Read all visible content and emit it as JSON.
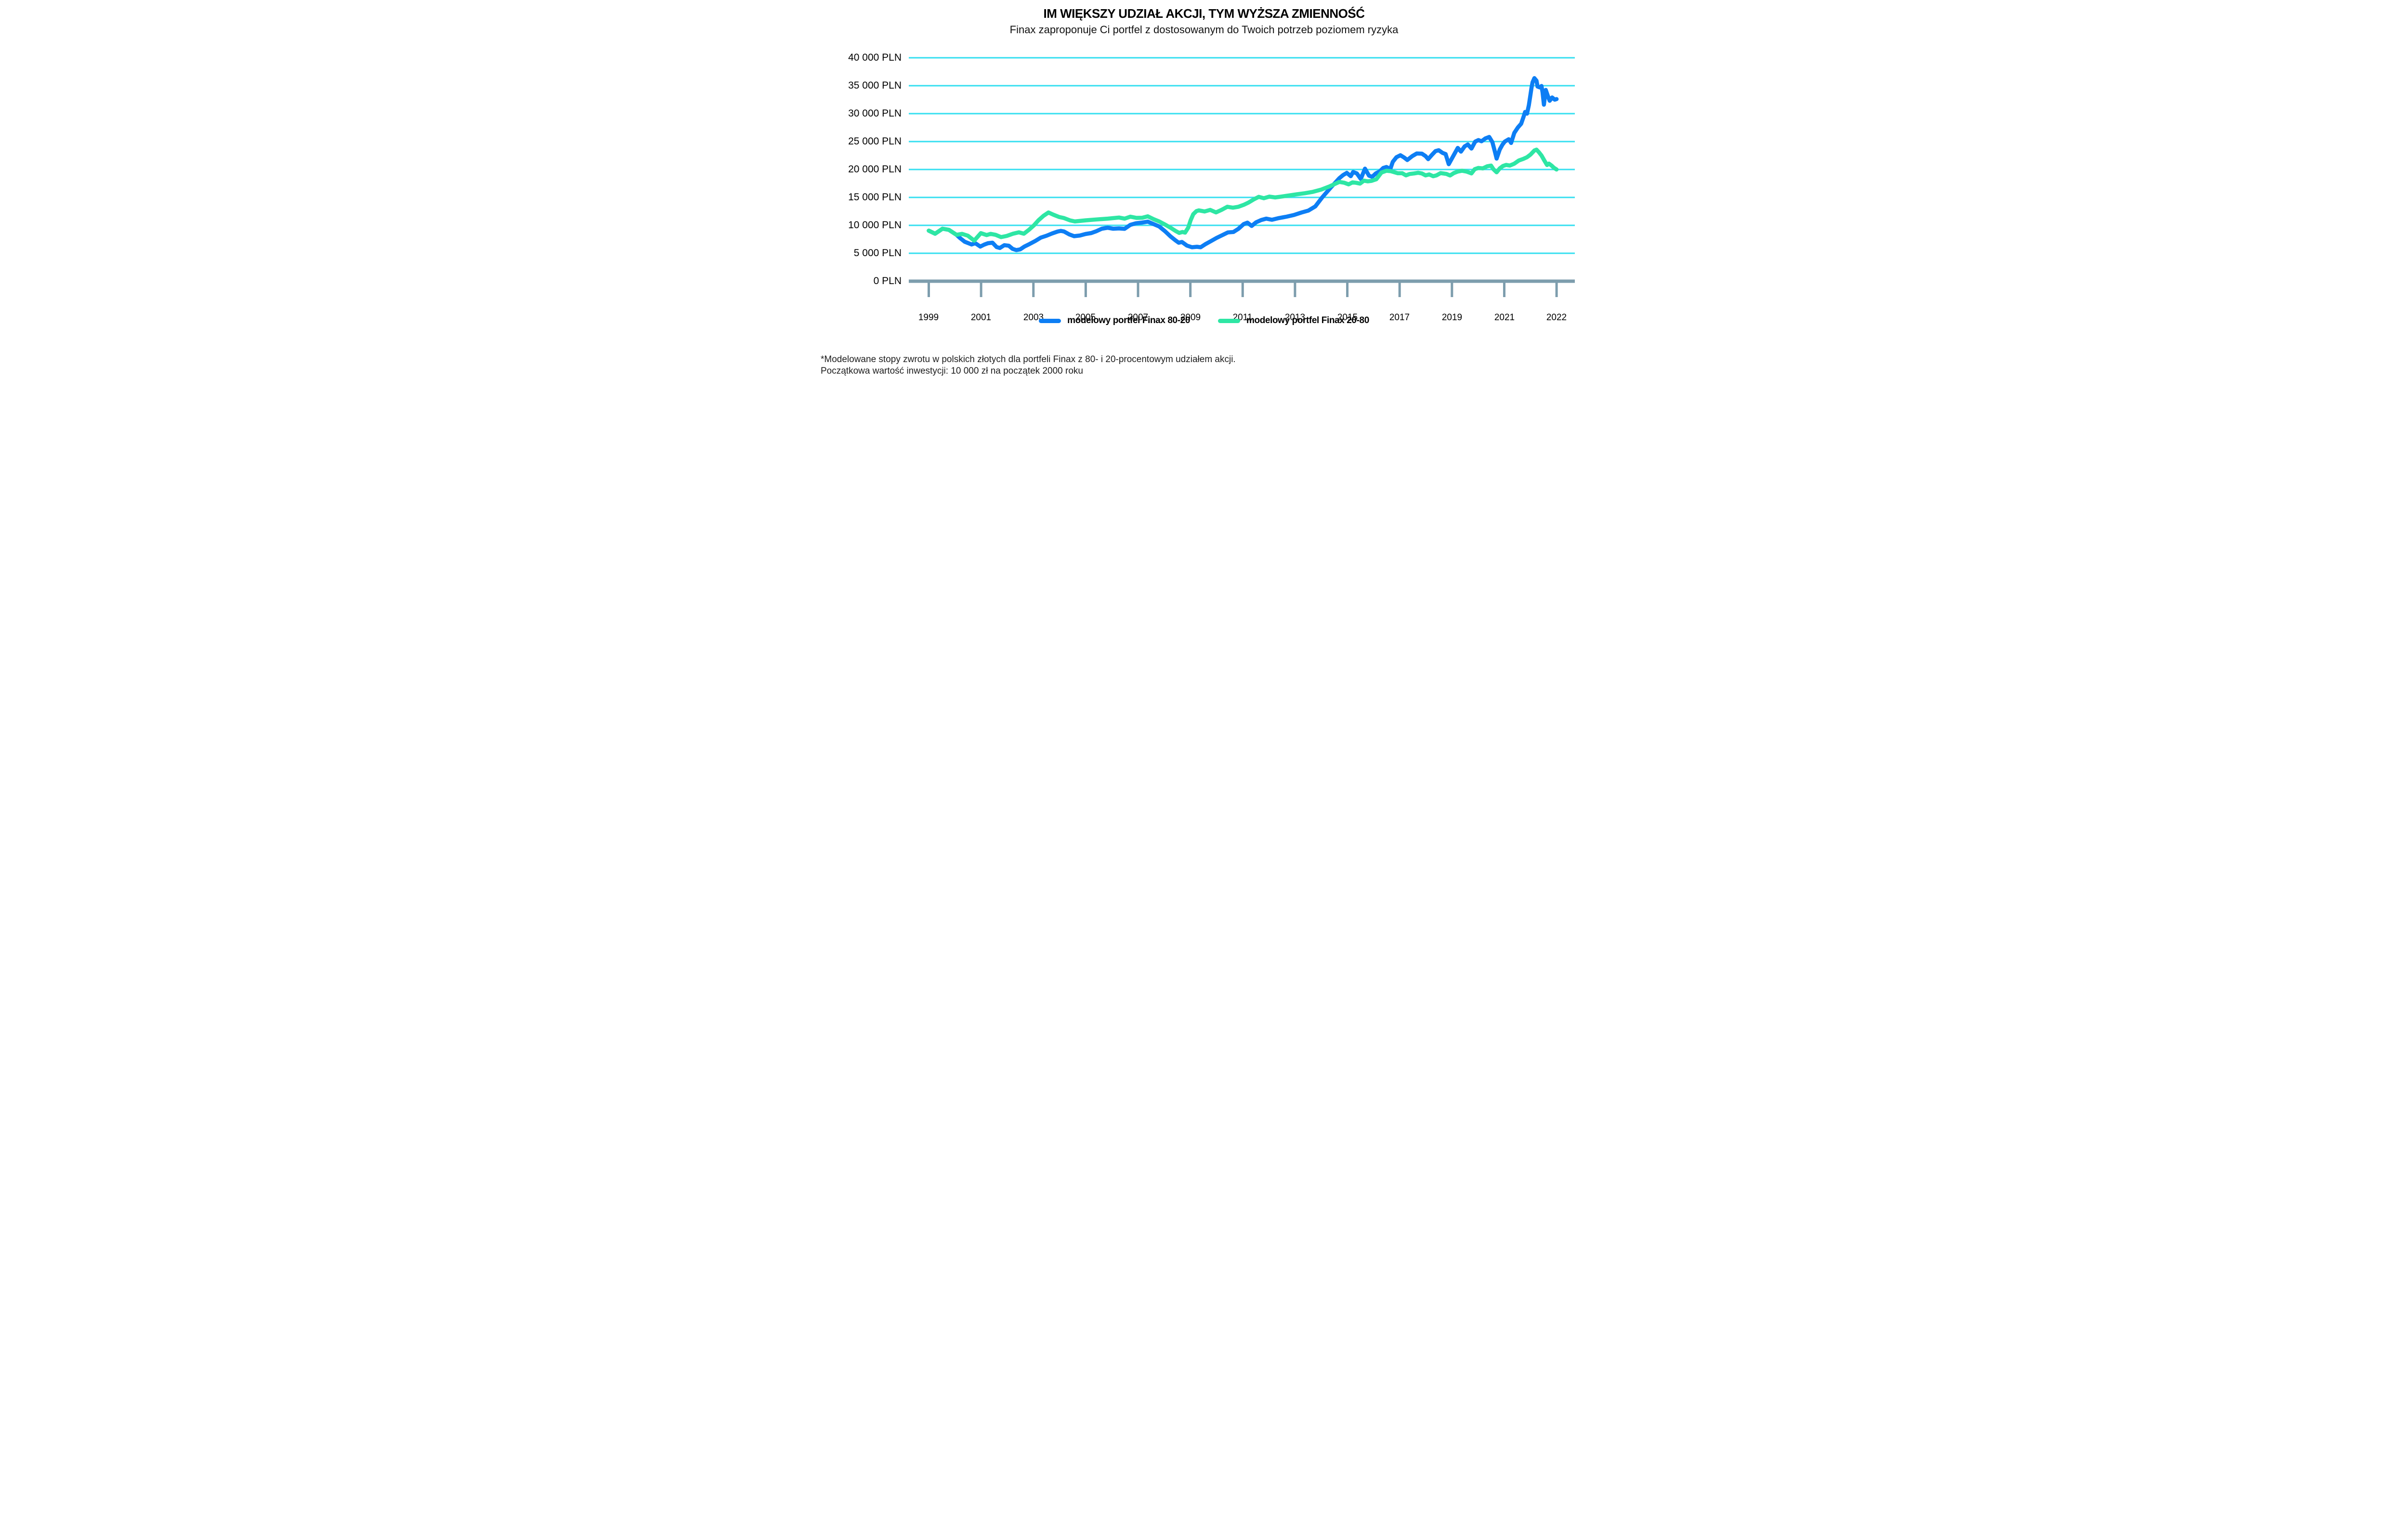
{
  "page": {
    "title": "IM WIĘKSZY UDZIAŁ AKCJI, TYM WYŻSZA ZMIENNOŚĆ",
    "subtitle": "Finax zaproponuje Ci portfel z dostosowanym do Twoich potrzeb poziomem ryzyka"
  },
  "footnote": {
    "line1": "*Modelowane stopy zwrotu w polskich złotych dla portfeli Finax z 80- i 20-procentowym udziałem akcji.",
    "line2": "Początkowa wartość inwestycji: 10 000 zł na początek 2000 roku"
  },
  "legend": {
    "items": [
      {
        "label": "modelowy portfel Finax 80-20"
      },
      {
        "label": "modelowy portfel Finax 20-80"
      }
    ]
  },
  "colors": {
    "series_blue": "#0d7ef4",
    "series_green": "#2ee6a4",
    "gridline": "#35dff0",
    "axis": "#7d9dad",
    "text": "#000000"
  },
  "chart_data": {
    "type": "line",
    "title": "IM WIĘKSZY UDZIAŁ AKCJI, TYM WYŻSZA ZMIENNOŚĆ",
    "subtitle": "Finax zaproponuje Ci portfel z dostosowanym do Twoich potrzeb poziomem ryzyka",
    "ylabel": "PLN",
    "ylim": [
      0,
      40000
    ],
    "grid": "horizontal cyan lines every 5000 PLN",
    "legend_position": "bottom-center",
    "x_axis": {
      "tick_labels": [
        "1999",
        "2001",
        "2003",
        "2005",
        "2007",
        "2009",
        "2011",
        "2013",
        "2015",
        "2017",
        "2019",
        "2021",
        "2022"
      ],
      "note": "13 evenly spaced ticks; series span years 1999-2022.8 mapped linearly across the axis"
    },
    "y_axis": {
      "tick_values": [
        40000,
        35000,
        30000,
        25000,
        20000,
        15000,
        10000,
        5000,
        0
      ],
      "tick_labels": [
        "40 000 PLN",
        "35 000 PLN",
        "30 000 PLN",
        "25 000 PLN",
        "20 000 PLN",
        "15 000 PLN",
        "10 000 PLN",
        "5 000 PLN",
        "0 PLN"
      ]
    },
    "x_range_years": [
      1999.0,
      2022.76
    ],
    "series": [
      {
        "name": "modelowy portfel Finax 80-20",
        "color": "#0d7ef4",
        "points": [
          [
            1999.0,
            9050
          ],
          [
            1999.24,
            8500
          ],
          [
            1999.52,
            9400
          ],
          [
            1999.76,
            9200
          ],
          [
            2000.05,
            8300
          ],
          [
            2000.19,
            7700
          ],
          [
            2000.36,
            7070
          ],
          [
            2000.5,
            6800
          ],
          [
            2000.62,
            6580
          ],
          [
            2000.76,
            6800
          ],
          [
            2000.95,
            6200
          ],
          [
            2001.1,
            6550
          ],
          [
            2001.24,
            6800
          ],
          [
            2001.41,
            6900
          ],
          [
            2001.57,
            6100
          ],
          [
            2001.69,
            5950
          ],
          [
            2001.86,
            6450
          ],
          [
            2002.03,
            6350
          ],
          [
            2002.17,
            5800
          ],
          [
            2002.31,
            5570
          ],
          [
            2002.46,
            5700
          ],
          [
            2002.62,
            6200
          ],
          [
            2002.81,
            6650
          ],
          [
            2003.03,
            7200
          ],
          [
            2003.24,
            7800
          ],
          [
            2003.46,
            8150
          ],
          [
            2003.67,
            8550
          ],
          [
            2003.88,
            8900
          ],
          [
            2004.0,
            9010
          ],
          [
            2004.12,
            8900
          ],
          [
            2004.31,
            8400
          ],
          [
            2004.5,
            8060
          ],
          [
            2004.72,
            8180
          ],
          [
            2004.93,
            8450
          ],
          [
            2005.15,
            8620
          ],
          [
            2005.34,
            8950
          ],
          [
            2005.55,
            9400
          ],
          [
            2005.77,
            9570
          ],
          [
            2005.98,
            9400
          ],
          [
            2006.2,
            9450
          ],
          [
            2006.41,
            9380
          ],
          [
            2006.63,
            10090
          ],
          [
            2006.84,
            10370
          ],
          [
            2007.08,
            10500
          ],
          [
            2007.29,
            10660
          ],
          [
            2007.51,
            10220
          ],
          [
            2007.72,
            9800
          ],
          [
            2007.94,
            8950
          ],
          [
            2008.15,
            8020
          ],
          [
            2008.34,
            7300
          ],
          [
            2008.46,
            6890
          ],
          [
            2008.58,
            7030
          ],
          [
            2008.77,
            6380
          ],
          [
            2008.96,
            6080
          ],
          [
            2009.15,
            6160
          ],
          [
            2009.29,
            6080
          ],
          [
            2009.46,
            6600
          ],
          [
            2009.68,
            7180
          ],
          [
            2009.89,
            7740
          ],
          [
            2010.11,
            8250
          ],
          [
            2010.32,
            8730
          ],
          [
            2010.53,
            8810
          ],
          [
            2010.72,
            9380
          ],
          [
            2010.92,
            10230
          ],
          [
            2011.06,
            10480
          ],
          [
            2011.22,
            9900
          ],
          [
            2011.39,
            10550
          ],
          [
            2011.58,
            10950
          ],
          [
            2011.77,
            11200
          ],
          [
            2011.99,
            11000
          ],
          [
            2012.25,
            11300
          ],
          [
            2012.54,
            11550
          ],
          [
            2012.82,
            11850
          ],
          [
            2013.11,
            12300
          ],
          [
            2013.37,
            12650
          ],
          [
            2013.63,
            13400
          ],
          [
            2013.89,
            15000
          ],
          [
            2014.2,
            16700
          ],
          [
            2014.54,
            18450
          ],
          [
            2014.68,
            19000
          ],
          [
            2014.82,
            19400
          ],
          [
            2014.97,
            18800
          ],
          [
            2015.06,
            19550
          ],
          [
            2015.2,
            19300
          ],
          [
            2015.35,
            18300
          ],
          [
            2015.51,
            20150
          ],
          [
            2015.66,
            18900
          ],
          [
            2015.78,
            18680
          ],
          [
            2015.92,
            19300
          ],
          [
            2016.06,
            19630
          ],
          [
            2016.2,
            20280
          ],
          [
            2016.32,
            20450
          ],
          [
            2016.47,
            20100
          ],
          [
            2016.56,
            21350
          ],
          [
            2016.7,
            22200
          ],
          [
            2016.85,
            22550
          ],
          [
            2016.99,
            22150
          ],
          [
            2017.11,
            21700
          ],
          [
            2017.3,
            22400
          ],
          [
            2017.47,
            22870
          ],
          [
            2017.66,
            22840
          ],
          [
            2017.8,
            22400
          ],
          [
            2017.9,
            21850
          ],
          [
            2018.04,
            22600
          ],
          [
            2018.18,
            23300
          ],
          [
            2018.3,
            23450
          ],
          [
            2018.44,
            22980
          ],
          [
            2018.56,
            22760
          ],
          [
            2018.68,
            20950
          ],
          [
            2018.83,
            22250
          ],
          [
            2019.02,
            23860
          ],
          [
            2019.14,
            23200
          ],
          [
            2019.28,
            24140
          ],
          [
            2019.4,
            24480
          ],
          [
            2019.54,
            23750
          ],
          [
            2019.68,
            24990
          ],
          [
            2019.8,
            25270
          ],
          [
            2019.92,
            25050
          ],
          [
            2020.06,
            25550
          ],
          [
            2020.21,
            25830
          ],
          [
            2020.33,
            24900
          ],
          [
            2020.42,
            23300
          ],
          [
            2020.49,
            21950
          ],
          [
            2020.61,
            23580
          ],
          [
            2020.71,
            24430
          ],
          [
            2020.8,
            25000
          ],
          [
            2020.95,
            25410
          ],
          [
            2021.04,
            24750
          ],
          [
            2021.16,
            26550
          ],
          [
            2021.3,
            27550
          ],
          [
            2021.42,
            28200
          ],
          [
            2021.5,
            29300
          ],
          [
            2021.57,
            30300
          ],
          [
            2021.64,
            30000
          ],
          [
            2021.71,
            31500
          ],
          [
            2021.76,
            33000
          ],
          [
            2021.81,
            34600
          ],
          [
            2021.85,
            35600
          ],
          [
            2021.92,
            36350
          ],
          [
            2022.0,
            35900
          ],
          [
            2022.04,
            34850
          ],
          [
            2022.12,
            34700
          ],
          [
            2022.19,
            34950
          ],
          [
            2022.23,
            33800
          ],
          [
            2022.28,
            31600
          ],
          [
            2022.35,
            34250
          ],
          [
            2022.42,
            33300
          ],
          [
            2022.5,
            32300
          ],
          [
            2022.59,
            32900
          ],
          [
            2022.69,
            32500
          ],
          [
            2022.76,
            32600
          ]
        ]
      },
      {
        "name": "modelowy portfel Finax 20-80",
        "color": "#2ee6a4",
        "points": [
          [
            1999.0,
            9050
          ],
          [
            1999.24,
            8500
          ],
          [
            1999.52,
            9400
          ],
          [
            1999.76,
            9200
          ],
          [
            2000.05,
            8300
          ],
          [
            2000.26,
            8470
          ],
          [
            2000.48,
            8150
          ],
          [
            2000.72,
            7270
          ],
          [
            2000.97,
            8600
          ],
          [
            2001.19,
            8260
          ],
          [
            2001.34,
            8470
          ],
          [
            2001.53,
            8300
          ],
          [
            2001.74,
            7900
          ],
          [
            2001.95,
            8100
          ],
          [
            2002.19,
            8500
          ],
          [
            2002.41,
            8750
          ],
          [
            2002.6,
            8500
          ],
          [
            2002.79,
            9200
          ],
          [
            2002.98,
            10000
          ],
          [
            2003.15,
            10900
          ],
          [
            2003.34,
            11700
          ],
          [
            2003.53,
            12300
          ],
          [
            2003.72,
            11900
          ],
          [
            2003.93,
            11500
          ],
          [
            2004.12,
            11300
          ],
          [
            2004.34,
            10900
          ],
          [
            2004.53,
            10700
          ],
          [
            2004.93,
            10900
          ],
          [
            2005.34,
            11050
          ],
          [
            2005.77,
            11200
          ],
          [
            2006.2,
            11400
          ],
          [
            2006.41,
            11200
          ],
          [
            2006.63,
            11550
          ],
          [
            2006.86,
            11340
          ],
          [
            2007.08,
            11360
          ],
          [
            2007.29,
            11610
          ],
          [
            2007.51,
            11100
          ],
          [
            2007.72,
            10700
          ],
          [
            2007.94,
            10150
          ],
          [
            2008.15,
            9580
          ],
          [
            2008.34,
            9000
          ],
          [
            2008.48,
            8650
          ],
          [
            2008.6,
            8810
          ],
          [
            2008.7,
            8700
          ],
          [
            2008.82,
            9600
          ],
          [
            2008.91,
            10900
          ],
          [
            2009.01,
            12000
          ],
          [
            2009.13,
            12550
          ],
          [
            2009.22,
            12680
          ],
          [
            2009.44,
            12480
          ],
          [
            2009.65,
            12770
          ],
          [
            2009.87,
            12320
          ],
          [
            2010.08,
            12770
          ],
          [
            2010.3,
            13330
          ],
          [
            2010.51,
            13160
          ],
          [
            2010.72,
            13330
          ],
          [
            2010.92,
            13670
          ],
          [
            2011.11,
            14100
          ],
          [
            2011.3,
            14650
          ],
          [
            2011.49,
            15100
          ],
          [
            2011.68,
            14850
          ],
          [
            2011.89,
            15150
          ],
          [
            2012.11,
            15000
          ],
          [
            2012.34,
            15150
          ],
          [
            2012.63,
            15350
          ],
          [
            2012.92,
            15550
          ],
          [
            2013.23,
            15750
          ],
          [
            2013.54,
            16000
          ],
          [
            2013.85,
            16400
          ],
          [
            2014.18,
            17000
          ],
          [
            2014.54,
            17780
          ],
          [
            2014.73,
            17620
          ],
          [
            2014.89,
            17340
          ],
          [
            2015.04,
            17700
          ],
          [
            2015.18,
            17610
          ],
          [
            2015.32,
            17470
          ],
          [
            2015.47,
            18000
          ],
          [
            2015.61,
            17880
          ],
          [
            2015.75,
            17960
          ],
          [
            2015.94,
            18260
          ],
          [
            2016.13,
            19450
          ],
          [
            2016.32,
            19780
          ],
          [
            2016.49,
            19700
          ],
          [
            2016.75,
            19330
          ],
          [
            2016.92,
            19330
          ],
          [
            2017.06,
            18950
          ],
          [
            2017.2,
            19200
          ],
          [
            2017.37,
            19290
          ],
          [
            2017.52,
            19410
          ],
          [
            2017.66,
            19290
          ],
          [
            2017.8,
            18950
          ],
          [
            2017.94,
            19115
          ],
          [
            2018.09,
            18790
          ],
          [
            2018.21,
            18940
          ],
          [
            2018.37,
            19350
          ],
          [
            2018.59,
            19210
          ],
          [
            2018.73,
            18930
          ],
          [
            2018.87,
            19350
          ],
          [
            2019.02,
            19630
          ],
          [
            2019.18,
            19775
          ],
          [
            2019.35,
            19630
          ],
          [
            2019.54,
            19300
          ],
          [
            2019.66,
            20050
          ],
          [
            2019.8,
            20280
          ],
          [
            2019.97,
            20195
          ],
          [
            2020.13,
            20565
          ],
          [
            2020.28,
            20700
          ],
          [
            2020.37,
            20050
          ],
          [
            2020.49,
            19500
          ],
          [
            2020.61,
            20195
          ],
          [
            2020.73,
            20620
          ],
          [
            2020.85,
            20815
          ],
          [
            2020.99,
            20705
          ],
          [
            2021.16,
            21040
          ],
          [
            2021.33,
            21600
          ],
          [
            2021.5,
            21900
          ],
          [
            2021.64,
            22200
          ],
          [
            2021.78,
            22700
          ],
          [
            2021.92,
            23400
          ],
          [
            2022.0,
            23550
          ],
          [
            2022.09,
            23100
          ],
          [
            2022.19,
            22500
          ],
          [
            2022.31,
            21500
          ],
          [
            2022.4,
            20800
          ],
          [
            2022.47,
            21050
          ],
          [
            2022.57,
            20700
          ],
          [
            2022.66,
            20300
          ],
          [
            2022.76,
            20000
          ]
        ]
      }
    ]
  }
}
